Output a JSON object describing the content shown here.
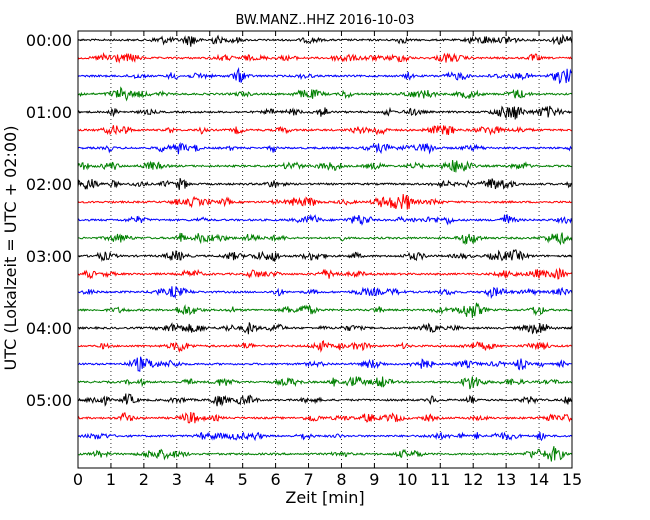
{
  "chart_data": {
    "type": "line",
    "title": "BW.MANZ..HHZ 2016-10-03",
    "xlabel": "Zeit  [min]",
    "ylabel": "UTC (Lokalzeit = UTC + 02:00)",
    "xlim": [
      0,
      15
    ],
    "x_ticks": [
      "0",
      "1",
      "2",
      "3",
      "4",
      "5",
      "6",
      "7",
      "8",
      "9",
      "10",
      "11",
      "12",
      "13",
      "14",
      "15"
    ],
    "y_tick_labels": [
      "00:00",
      "01:00",
      "02:00",
      "03:00",
      "04:00",
      "05:00"
    ],
    "trace_count": 24,
    "trace_start_minutes": [
      0,
      15,
      30,
      45,
      60,
      75,
      90,
      105,
      120,
      135,
      150,
      165,
      180,
      195,
      210,
      225,
      240,
      255,
      270,
      285,
      300,
      315,
      330,
      345
    ],
    "grid": "vertical dotted lines at each minute",
    "legend": "none",
    "colors": [
      "#000000",
      "#ff0000",
      "#0000ff",
      "#008000"
    ]
  }
}
